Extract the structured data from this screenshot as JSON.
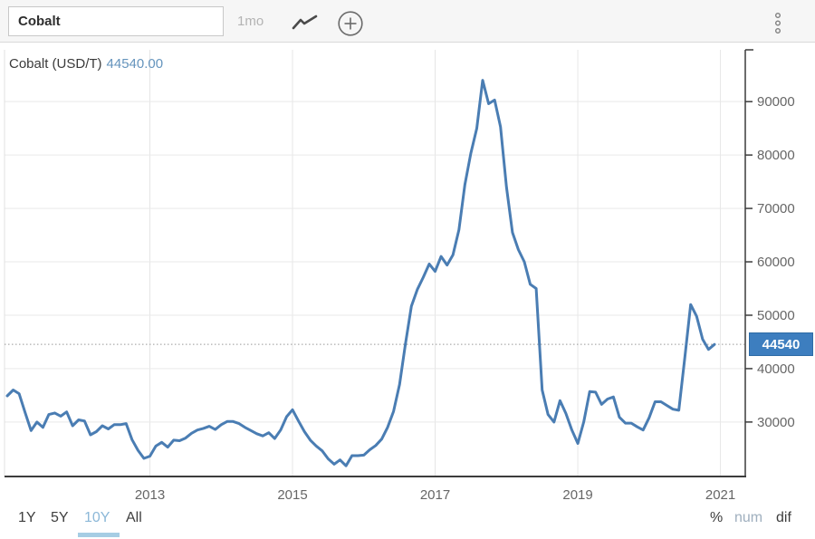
{
  "toolbar": {
    "search_value": "Cobalt",
    "interval_label": "1mo"
  },
  "chart": {
    "title": "Cobalt (USD/T)",
    "current_value_label": "44540.00",
    "price_badge": "44540",
    "colors": {
      "line": "#4a7db3",
      "badge_bg": "#3d7ebf",
      "badge_border": "#2e6ca6",
      "title_value": "#6594bd",
      "selected_range": "#8cb8d8",
      "selected_mode": "#9fafbe",
      "accent_underline": "#a6cde4"
    }
  },
  "chart_data": {
    "type": "line",
    "series_name": "Cobalt (USD/T)",
    "x_start_year": 2011,
    "x_end_year": 2021,
    "points_per_year": 12,
    "x_tick_years": [
      2013,
      2015,
      2017,
      2019,
      2021
    ],
    "x_tick_labels": [
      "2013",
      "2015",
      "2017",
      "2019",
      "2021"
    ],
    "y_ticks": [
      30000,
      40000,
      50000,
      60000,
      70000,
      80000,
      90000
    ],
    "ylim": [
      19800,
      99700
    ],
    "current_price": 44540,
    "grid": true,
    "legend": false,
    "values": [
      34900,
      36000,
      35300,
      31800,
      28400,
      30000,
      29000,
      31400,
      31700,
      31100,
      31900,
      29300,
      30400,
      30200,
      27600,
      28200,
      29300,
      28700,
      29500,
      29500,
      29700,
      26700,
      24700,
      23200,
      23600,
      25500,
      26200,
      25300,
      26600,
      26500,
      27000,
      27900,
      28500,
      28800,
      29200,
      28600,
      29500,
      30100,
      30100,
      29700,
      29000,
      28400,
      27800,
      27400,
      28000,
      26900,
      28500,
      31000,
      32300,
      30200,
      28200,
      26600,
      25500,
      24600,
      23100,
      22100,
      22900,
      21800,
      23700,
      23700,
      23800,
      24800,
      25600,
      26800,
      29000,
      32000,
      37000,
      44600,
      51700,
      54800,
      57100,
      59600,
      58200,
      61000,
      59400,
      61300,
      66000,
      74500,
      80300,
      85000,
      94000,
      89600,
      90300,
      85300,
      74000,
      65500,
      62300,
      60000,
      55800,
      55000,
      36000,
      31400,
      30000,
      34000,
      31600,
      28500,
      26000,
      30000,
      35700,
      35600,
      33300,
      34300,
      34700,
      30900,
      29800,
      29800,
      29100,
      28500,
      30800,
      33800,
      33800,
      33100,
      32400,
      32200,
      42000,
      52000,
      49800,
      45500,
      43600,
      44540
    ]
  },
  "range_selector": {
    "options": [
      {
        "label": "1Y",
        "selected": false
      },
      {
        "label": "5Y",
        "selected": false
      },
      {
        "label": "10Y",
        "selected": true
      },
      {
        "label": "All",
        "selected": false
      }
    ]
  },
  "mode_selector": {
    "options": [
      {
        "label": "%",
        "selected": false
      },
      {
        "label": "num",
        "selected": true
      },
      {
        "label": "dif",
        "selected": false
      }
    ]
  }
}
